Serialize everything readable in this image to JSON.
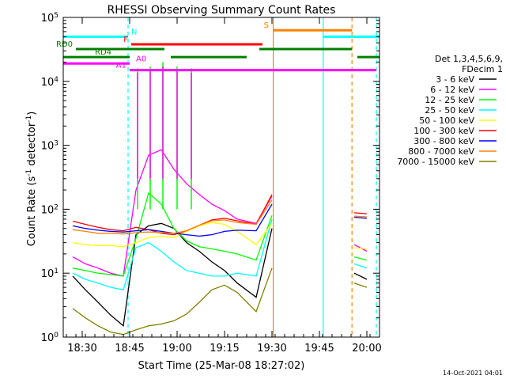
{
  "chart_data": {
    "type": "line",
    "title": "RHESSI Observing Summary Count Rates",
    "xlabel": "Start Time (25-Mar-08 18:27:02)",
    "ylabel_main": "Count Rate (s",
    "ylabel_sup1": "-1",
    "ylabel_mid": " detector",
    "ylabel_sup2": "-1",
    "ylabel_end": ")",
    "y_scale": "log",
    "xlim_minutes": [
      -3,
      97
    ],
    "ylim": [
      1,
      100000
    ],
    "x_ticks": [
      {
        "minute": 3,
        "label": "18:30"
      },
      {
        "minute": 18,
        "label": "18:45"
      },
      {
        "minute": 33,
        "label": "19:00"
      },
      {
        "minute": 48,
        "label": "19:15"
      },
      {
        "minute": 63,
        "label": "19:30"
      },
      {
        "minute": 78,
        "label": "19:45"
      },
      {
        "minute": 93,
        "label": "20:00"
      }
    ],
    "y_ticks": [
      {
        "value": 1,
        "base": "10",
        "exp": "0"
      },
      {
        "value": 10,
        "base": "10",
        "exp": "1"
      },
      {
        "value": 100,
        "base": "10",
        "exp": "2"
      },
      {
        "value": 1000,
        "base": "10",
        "exp": "3"
      },
      {
        "value": 10000,
        "base": "10",
        "exp": "4"
      },
      {
        "value": 100000,
        "base": "10",
        "exp": "5"
      }
    ],
    "legend_header_1": "Det 1,3,4,5,6,9,",
    "legend_header_2": "FDecim 1",
    "series": [
      {
        "name": "3 - 6 keV",
        "color": "#000000",
        "values": [
          9,
          5.5,
          3.5,
          2.2,
          1.5,
          40,
          55,
          60,
          50,
          30,
          22,
          15,
          11,
          7,
          4.2,
          50,
          10,
          8
        ]
      },
      {
        "name": "6 - 12 keV",
        "color": "#ff00ff",
        "values": [
          18,
          14,
          12,
          10,
          9,
          200,
          700,
          850,
          420,
          250,
          170,
          120,
          95,
          70,
          60,
          160,
          28,
          22
        ]
      },
      {
        "name": "12 - 25 keV",
        "color": "#00ff00",
        "values": [
          12,
          11,
          10,
          9.5,
          9,
          35,
          180,
          120,
          50,
          32,
          26,
          24,
          22,
          20,
          16,
          80,
          18,
          16
        ]
      },
      {
        "name": "25 - 50 keV",
        "color": "#00ffff",
        "values": [
          10,
          8,
          7,
          6,
          5.5,
          25,
          30,
          22,
          15,
          11,
          10,
          9,
          9,
          10,
          9,
          70,
          14,
          12
        ]
      },
      {
        "name": "50 - 100 keV",
        "color": "#ffff00",
        "values": [
          30,
          28,
          27,
          27,
          26,
          30,
          36,
          38,
          36,
          45,
          55,
          62,
          58,
          45,
          28,
          60,
          25,
          24
        ]
      },
      {
        "name": "100 - 300 keV",
        "color": "#ff0000",
        "values": [
          65,
          58,
          52,
          48,
          46,
          52,
          48,
          42,
          40,
          46,
          56,
          68,
          72,
          66,
          58,
          170,
          88,
          85
        ]
      },
      {
        "name": "300 - 800 keV",
        "color": "#0000ff",
        "values": [
          55,
          50,
          47,
          45,
          44,
          46,
          48,
          45,
          42,
          40,
          38,
          40,
          45,
          47,
          46,
          120,
          75,
          72
        ]
      },
      {
        "name": "800 - 7000 keV",
        "color": "#ff8000",
        "values": [
          48,
          45,
          42,
          42,
          41,
          43,
          44,
          43,
          42,
          46,
          56,
          66,
          68,
          62,
          58,
          140,
          78,
          76
        ]
      },
      {
        "name": "7000 - 15000 keV",
        "color": "#808000",
        "values": [
          2.8,
          2,
          1.5,
          1.2,
          1.1,
          1.3,
          1.5,
          1.6,
          1.8,
          2.3,
          3.5,
          5.5,
          6.5,
          5,
          2.5,
          12,
          7,
          6
        ]
      }
    ],
    "sample_minutes": [
      0,
      4,
      8,
      12,
      16,
      20,
      24,
      28,
      32,
      36,
      40,
      44,
      48,
      52,
      58,
      63,
      89,
      93
    ],
    "gaps_minutes": [
      [
        63.5,
        88.2
      ]
    ],
    "vertical_markers": [
      {
        "minute": 17.5,
        "color": "#00ffff",
        "dashed": true
      },
      {
        "minute": 63.4,
        "color": "#ff8000",
        "dashed": false
      },
      {
        "minute": 79.2,
        "color": "#00ffff",
        "dashed": false
      },
      {
        "minute": 88.3,
        "color": "#ff8000",
        "dashed": true
      },
      {
        "minute": 96,
        "color": "#00ffff",
        "dashed": true
      }
    ],
    "flag_bars": [
      {
        "label": "N",
        "color": "#00ffff",
        "y": 50000,
        "segments": [
          [
            -3,
            17.5
          ],
          [
            79.2,
            97
          ]
        ],
        "label_minute": 18.5,
        "label_side": "right"
      },
      {
        "label": "S",
        "color": "#ff8000",
        "y": 63000,
        "segments": [
          [
            63.4,
            88.3
          ]
        ],
        "label_minute": 62,
        "label_side": "left"
      },
      {
        "label": "F",
        "color": "#ff0000",
        "y": 38000,
        "segments": [
          [
            18.5,
            60
          ]
        ],
        "label_minute": 17.5,
        "label_side": "left"
      },
      {
        "label": "RD0",
        "color": "#008000",
        "y": 32000,
        "segments": [
          [
            1,
            29
          ],
          [
            59,
            88.3
          ]
        ],
        "label_minute": 0,
        "label_side": "left"
      },
      {
        "label": "RD4",
        "color": "#008000",
        "y": 24000,
        "segments": [
          [
            -3,
            18
          ],
          [
            31,
            55
          ],
          [
            90,
            97
          ]
        ],
        "label_minute": 7,
        "label_side": "right"
      },
      {
        "label": "A0",
        "color": "#ff00ff",
        "y": 19000,
        "segments": [
          [
            -3,
            18
          ]
        ],
        "label_minute": 20,
        "label_side": "right"
      },
      {
        "label": "A1",
        "color": "#ff00ff",
        "y": 15000,
        "segments": [
          [
            18,
            96
          ]
        ],
        "label_minute": 17,
        "label_side": "left"
      }
    ],
    "spikes": [
      {
        "minute": 20.5,
        "peak": 16000,
        "color": "#00ff00"
      },
      {
        "minute": 24.5,
        "peak": 17000,
        "color": "#00ff00"
      },
      {
        "minute": 28.5,
        "peak": 20000,
        "color": "#00ff00"
      },
      {
        "minute": 33,
        "peak": 17000,
        "color": "#00ff00"
      },
      {
        "minute": 37.5,
        "peak": 16000,
        "color": "#00ff00"
      }
    ],
    "timestamp": "14-Oct-2021 04:01"
  }
}
